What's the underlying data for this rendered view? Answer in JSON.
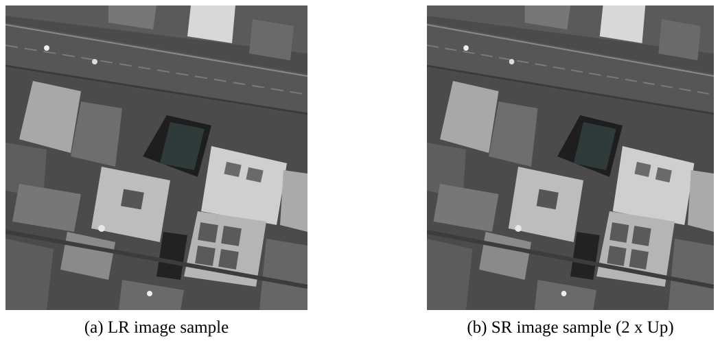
{
  "figure": {
    "panels": [
      {
        "caption": "(a) LR image sample"
      },
      {
        "caption": "(b) SR image sample (2 x Up)"
      }
    ]
  }
}
